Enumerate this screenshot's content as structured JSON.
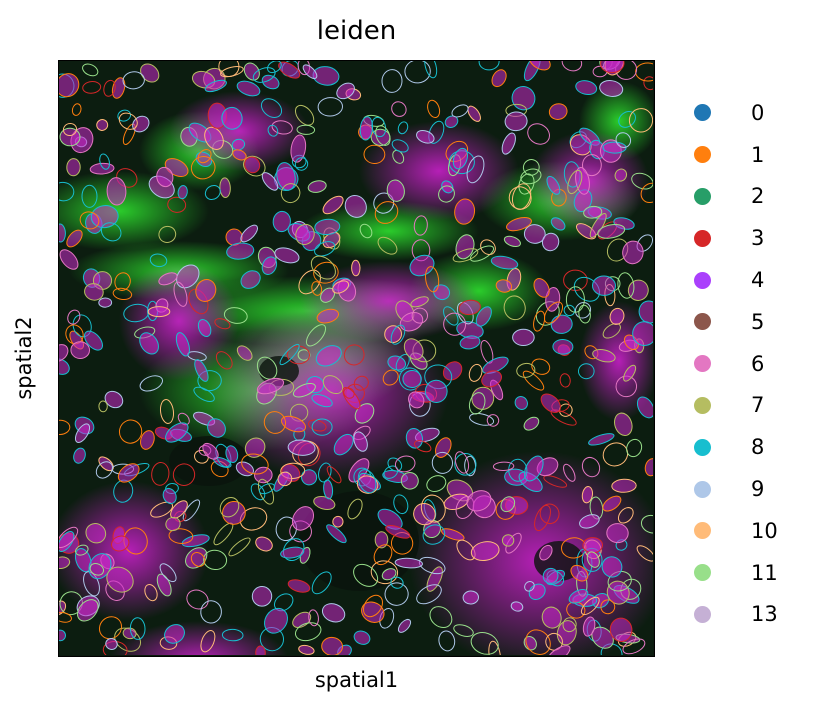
{
  "chart_data": {
    "type": "scatter",
    "title": "leiden",
    "xlabel": "spatial1",
    "ylabel": "spatial2",
    "grid": false,
    "legend_placement": "right-outside",
    "background": "fluorescence image (magenta nuclei, green stain)",
    "series": [
      {
        "name": "0",
        "color": "#1f77b4"
      },
      {
        "name": "1",
        "color": "#ff7f0e"
      },
      {
        "name": "2",
        "color": "#279e68"
      },
      {
        "name": "3",
        "color": "#d62728"
      },
      {
        "name": "4",
        "color": "#aa40fc"
      },
      {
        "name": "5",
        "color": "#8c564b"
      },
      {
        "name": "6",
        "color": "#e377c2"
      },
      {
        "name": "7",
        "color": "#b5bd61"
      },
      {
        "name": "8",
        "color": "#17becf"
      },
      {
        "name": "9",
        "color": "#aec7e8"
      },
      {
        "name": "10",
        "color": "#ffbb78"
      },
      {
        "name": "11",
        "color": "#98df8a"
      },
      {
        "name": "13",
        "color": "#c5b0d5"
      }
    ]
  }
}
